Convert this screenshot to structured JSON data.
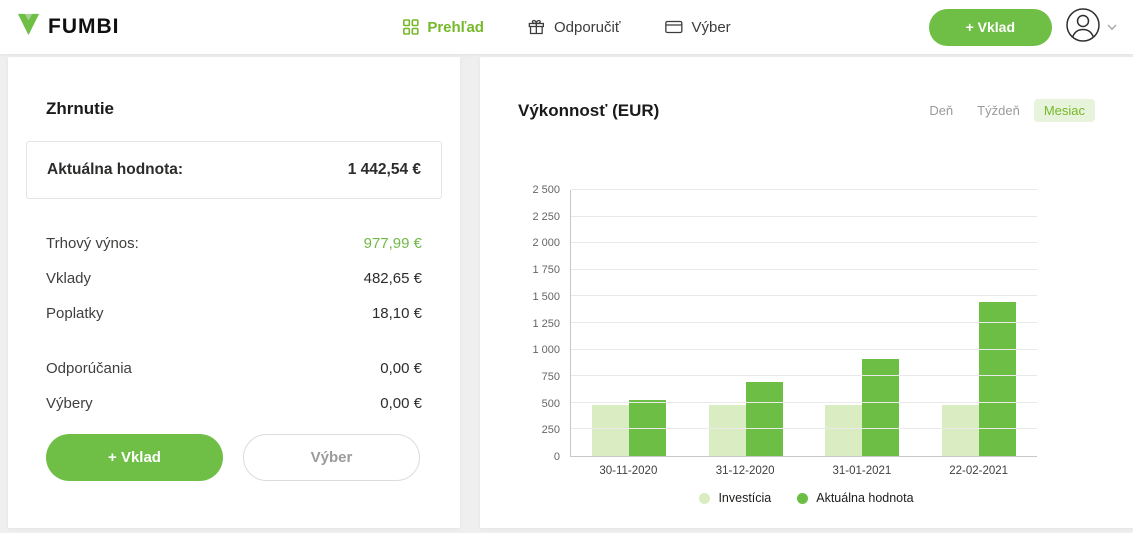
{
  "colors": {
    "accent": "#6fbe45",
    "accent_light": "#d9ecc2"
  },
  "header": {
    "brand": "FUMBI",
    "nav": [
      {
        "label": "Prehľad",
        "icon": "grid-icon",
        "active": true
      },
      {
        "label": "Odporučiť",
        "icon": "gift-icon",
        "active": false
      },
      {
        "label": "Výber",
        "icon": "card-icon",
        "active": false
      }
    ],
    "deposit_button": "+ Vklad"
  },
  "summary": {
    "title": "Zhrnutie",
    "current_value_label": "Aktuálna hodnota:",
    "current_value": "1 442,54 €",
    "rows": [
      {
        "label": "Trhový výnos:",
        "value": "977,99 €",
        "highlight": true,
        "spaced": false
      },
      {
        "label": "Vklady",
        "value": "482,65 €",
        "highlight": false,
        "spaced": false
      },
      {
        "label": "Poplatky",
        "value": "18,10 €",
        "highlight": false,
        "spaced": false
      },
      {
        "label": "Odporúčania",
        "value": "0,00 €",
        "highlight": false,
        "spaced": true
      },
      {
        "label": "Výbery",
        "value": "0,00 €",
        "highlight": false,
        "spaced": false
      }
    ],
    "deposit_button": "+ Vklad",
    "withdraw_button": "Výber"
  },
  "performance": {
    "title": "Výkonnosť (EUR)",
    "range_options": [
      {
        "label": "Deň",
        "active": false
      },
      {
        "label": "Týždeň",
        "active": false
      },
      {
        "label": "Mesiac",
        "active": true
      }
    ]
  },
  "chart_data": {
    "type": "bar",
    "title": "Výkonnosť (EUR)",
    "categories": [
      "30-11-2020",
      "31-12-2020",
      "31-01-2021",
      "22-02-2021"
    ],
    "series": [
      {
        "name": "Investícia",
        "color": "#d9ecc2",
        "values": [
          483,
          483,
          483,
          483
        ]
      },
      {
        "name": "Aktuálna hodnota",
        "color": "#6dbe45",
        "values": [
          525,
          700,
          915,
          1443
        ]
      }
    ],
    "ylim": [
      0,
      2500
    ],
    "yticks": [
      0,
      250,
      500,
      750,
      1000,
      1250,
      1500,
      1750,
      2000,
      2250,
      2500
    ],
    "grid": true,
    "legend_position": "bottom"
  }
}
